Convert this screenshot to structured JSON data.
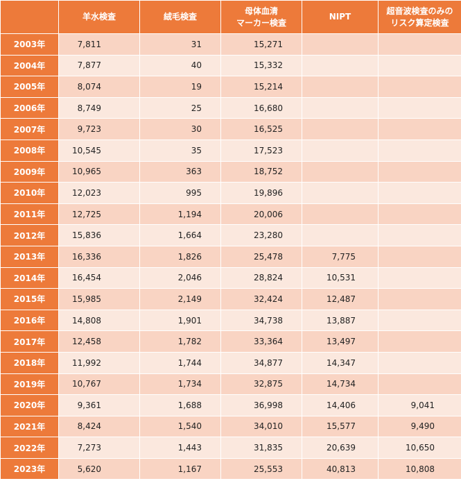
{
  "table": {
    "header": [
      [
        "羊水検査"
      ],
      [
        "絨毛検査"
      ],
      [
        "母体血清",
        "マーカー検査"
      ],
      [
        "NIPT"
      ],
      [
        "超音波検査のみの",
        "リスク算定検査"
      ]
    ],
    "rows": [
      [
        "2003年",
        "7,811",
        "31",
        "15,271",
        null,
        null
      ],
      [
        "2004年",
        "7,877",
        "40",
        "15,332",
        null,
        null
      ],
      [
        "2005年",
        "8,074",
        "19",
        "15,214",
        null,
        null
      ],
      [
        "2006年",
        "8,749",
        "25",
        "16,680",
        null,
        null
      ],
      [
        "2007年",
        "9,723",
        "30",
        "16,525",
        null,
        null
      ],
      [
        "2008年",
        "10,545",
        "35",
        "17,523",
        null,
        null
      ],
      [
        "2009年",
        "10,965",
        "363",
        "18,752",
        null,
        null
      ],
      [
        "2010年",
        "12,023",
        "995",
        "19,896",
        null,
        null
      ],
      [
        "2011年",
        "12,725",
        "1,194",
        "20,006",
        null,
        null
      ],
      [
        "2012年",
        "15,836",
        "1,664",
        "23,280",
        null,
        null
      ],
      [
        "2013年",
        "16,336",
        "1,826",
        "25,478",
        "7,775",
        null
      ],
      [
        "2014年",
        "16,454",
        "2,046",
        "28,824",
        "10,531",
        null
      ],
      [
        "2015年",
        "15,985",
        "2,149",
        "32,424",
        "12,487",
        null
      ],
      [
        "2016年",
        "14,808",
        "1,901",
        "34,738",
        "13,887",
        null
      ],
      [
        "2017年",
        "12,458",
        "1,782",
        "33,364",
        "13,497",
        null
      ],
      [
        "2018年",
        "11,992",
        "1,744",
        "34,877",
        "14,347",
        null
      ],
      [
        "2019年",
        "10,767",
        "1,734",
        "32,875",
        "14,734",
        null
      ],
      [
        "2020年",
        "9,361",
        "1,688",
        "36,998",
        "14,406",
        "9,041"
      ],
      [
        "2021年",
        "8,424",
        "1,540",
        "34,010",
        "15,577",
        "9,490"
      ],
      [
        "2022年",
        "7,273",
        "1,443",
        "31,835",
        "20,639",
        "10,650"
      ],
      [
        "2023年",
        "5,620",
        "1,167",
        "25,553",
        "40,813",
        "10,808"
      ]
    ]
  }
}
